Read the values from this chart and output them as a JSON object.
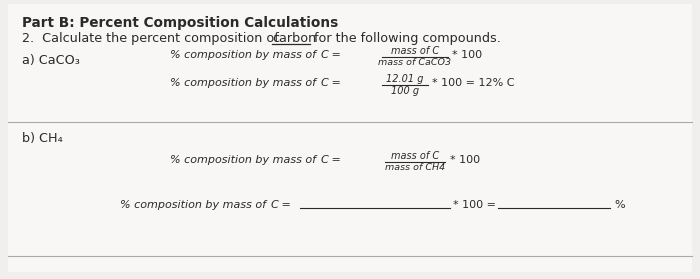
{
  "bg_color": "#f0efed",
  "content_bg": "#f5f4f2",
  "text_color": "#2a2a2a",
  "title": "Part B: Percent Composition Calculations",
  "line2_pre": "2.  Calculate the percent composition of ",
  "line2_underline": "carbon",
  "line2_post": " for the following compounds.",
  "part_a_label": "a) CaCO₃",
  "part_b_label": "b) CH₄",
  "fig_width": 7.0,
  "fig_height": 2.79,
  "dpi": 100
}
